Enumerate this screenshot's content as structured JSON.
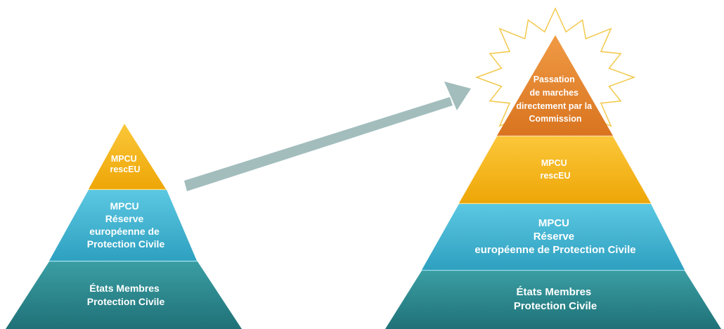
{
  "colors": {
    "orange": "#e4862e",
    "yellow": "#f7b80f",
    "blue": "#3fb4d2",
    "teal": "#2a8a90",
    "arrow": "#a3bdbd",
    "burst_stroke": "#f2c94c"
  },
  "small_pyramid": {
    "tier_top": [
      "MPCU",
      "rescEU"
    ],
    "tier_middle": [
      "MPCU",
      "Réserve",
      "européenne de",
      "Protection Civile"
    ],
    "tier_bottom": [
      "États Membres",
      "Protection Civile"
    ]
  },
  "large_pyramid": {
    "tier_top": [
      "Passation",
      "de marches",
      "directement par la",
      "Commission"
    ],
    "tier_second": [
      "MPCU",
      "rescEU"
    ],
    "tier_third": [
      "MPCU",
      "Réserve",
      "européenne de Protection Civile"
    ],
    "tier_bottom": [
      "États Membres",
      "Protection Civile"
    ]
  },
  "arrow": {
    "icon": "arrow-right-icon"
  },
  "burst": {
    "icon": "starburst-icon"
  }
}
